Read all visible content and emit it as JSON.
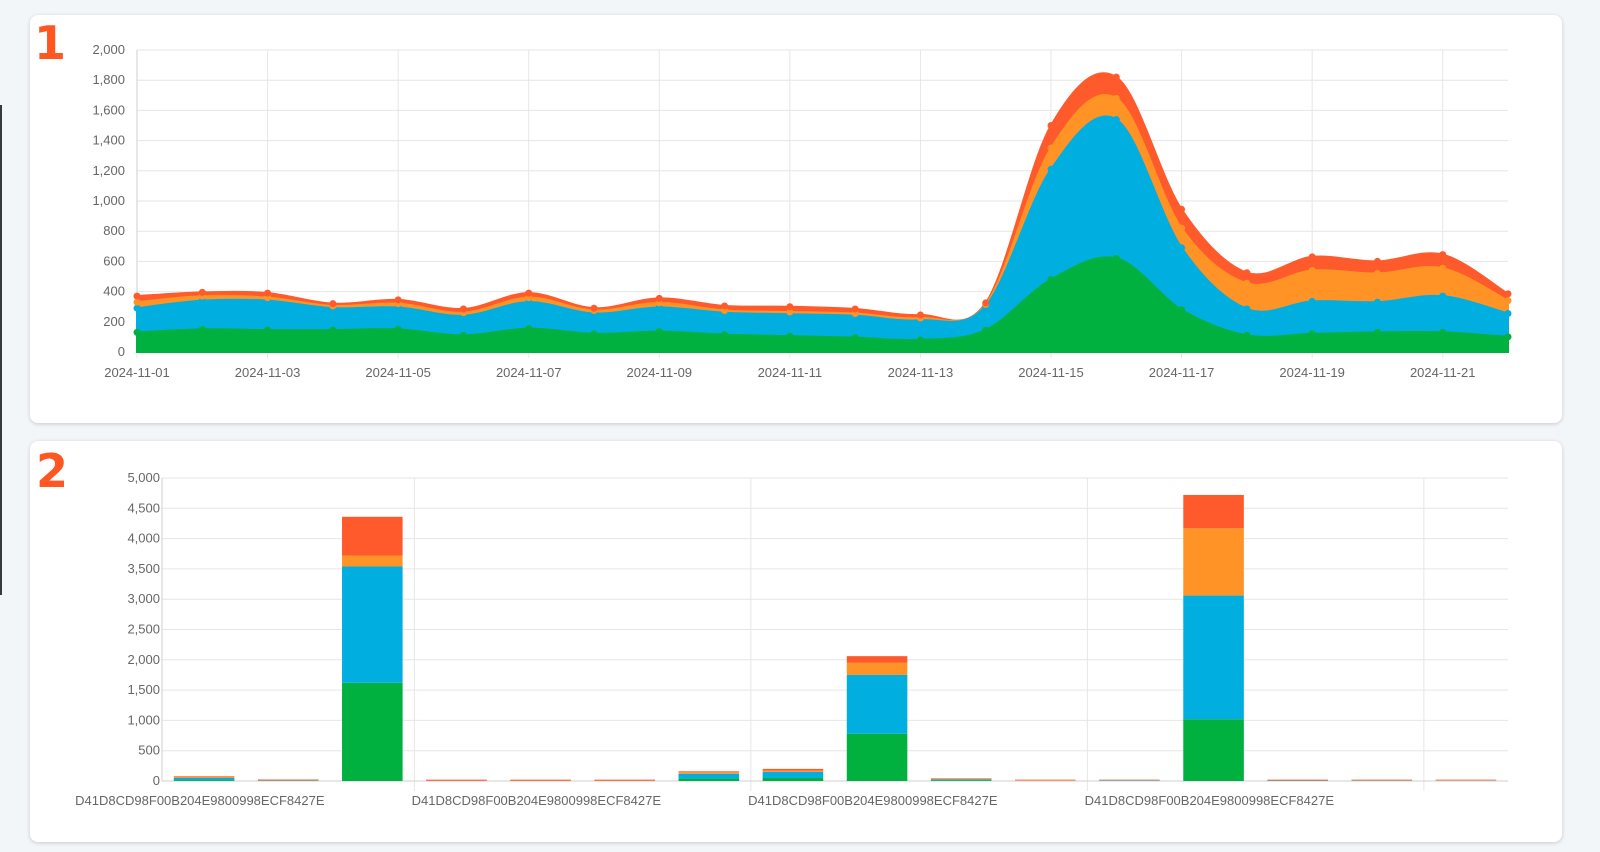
{
  "panels": [
    {
      "badge": "1"
    },
    {
      "badge": "2"
    }
  ],
  "colors": {
    "green": "#00b140",
    "blue": "#00aee0",
    "orange": "#ff9326",
    "red": "#ff5a2b",
    "grid": "#e6e6e6",
    "tick": "#666666"
  },
  "chart_data": [
    {
      "type": "area",
      "stacked": true,
      "smooth": true,
      "grid": true,
      "legend": "none",
      "x": [
        "2024-11-01",
        "2024-11-02",
        "2024-11-03",
        "2024-11-04",
        "2024-11-05",
        "2024-11-06",
        "2024-11-07",
        "2024-11-08",
        "2024-11-09",
        "2024-11-10",
        "2024-11-11",
        "2024-11-12",
        "2024-11-13",
        "2024-11-14",
        "2024-11-15",
        "2024-11-16",
        "2024-11-17",
        "2024-11-18",
        "2024-11-19",
        "2024-11-20",
        "2024-11-21",
        "2024-11-22"
      ],
      "x_ticks": [
        "2024-11-01",
        "2024-11-03",
        "2024-11-05",
        "2024-11-07",
        "2024-11-09",
        "2024-11-11",
        "2024-11-13",
        "2024-11-15",
        "2024-11-17",
        "2024-11-19",
        "2024-11-21"
      ],
      "ylim": [
        0,
        2000
      ],
      "y_ticks": [
        "0",
        "200",
        "400",
        "600",
        "800",
        "1,000",
        "1,200",
        "1,400",
        "1,600",
        "1,800",
        "2,000"
      ],
      "series": [
        {
          "values": [
            130,
            150,
            145,
            145,
            150,
            110,
            155,
            120,
            135,
            115,
            105,
            95,
            80,
            145,
            480,
            620,
            280,
            110,
            120,
            130,
            130,
            100
          ]
        },
        {
          "values": [
            160,
            190,
            195,
            145,
            145,
            130,
            175,
            135,
            160,
            145,
            145,
            145,
            130,
            160,
            730,
            920,
            410,
            175,
            215,
            200,
            240,
            155
          ]
        },
        {
          "values": [
            40,
            30,
            20,
            15,
            25,
            20,
            30,
            20,
            30,
            15,
            15,
            15,
            15,
            10,
            140,
            140,
            130,
            170,
            205,
            190,
            185,
            85
          ]
        },
        {
          "values": [
            40,
            25,
            30,
            15,
            25,
            25,
            30,
            15,
            30,
            30,
            35,
            30,
            20,
            10,
            150,
            140,
            125,
            70,
            90,
            80,
            90,
            45
          ]
        }
      ]
    },
    {
      "type": "bar",
      "stacked": true,
      "grid": true,
      "legend": "none",
      "categories": [
        "D41D8CD98F00B204E9800998ECF8427E",
        "",
        "",
        "",
        "D41D8CD98F00B204E9800998ECF8427E",
        "",
        "",
        "",
        "D41D8CD98F00B204E9800998ECF8427E",
        "",
        "",
        "",
        "D41D8CD98F00B204E9800998ECF8427E",
        "",
        "",
        ""
      ],
      "ylim": [
        0,
        5000
      ],
      "y_ticks": [
        "0",
        "500",
        "1,000",
        "1,500",
        "2,000",
        "2,500",
        "3,000",
        "3,500",
        "4,000",
        "4,500",
        "5,000"
      ],
      "series": [
        {
          "values": [
            15,
            2,
            1620,
            0,
            0,
            0,
            40,
            50,
            780,
            10,
            0,
            0,
            1020,
            5,
            3,
            0
          ]
        },
        {
          "values": [
            35,
            10,
            1920,
            0,
            0,
            0,
            80,
            100,
            970,
            15,
            0,
            10,
            2040,
            8,
            5,
            5
          ]
        },
        {
          "values": [
            20,
            5,
            180,
            5,
            5,
            5,
            25,
            20,
            200,
            10,
            5,
            0,
            1110,
            2,
            2,
            2
          ]
        },
        {
          "values": [
            10,
            3,
            640,
            10,
            10,
            10,
            15,
            30,
            110,
            10,
            5,
            0,
            550,
            2,
            2,
            2
          ]
        }
      ]
    }
  ]
}
